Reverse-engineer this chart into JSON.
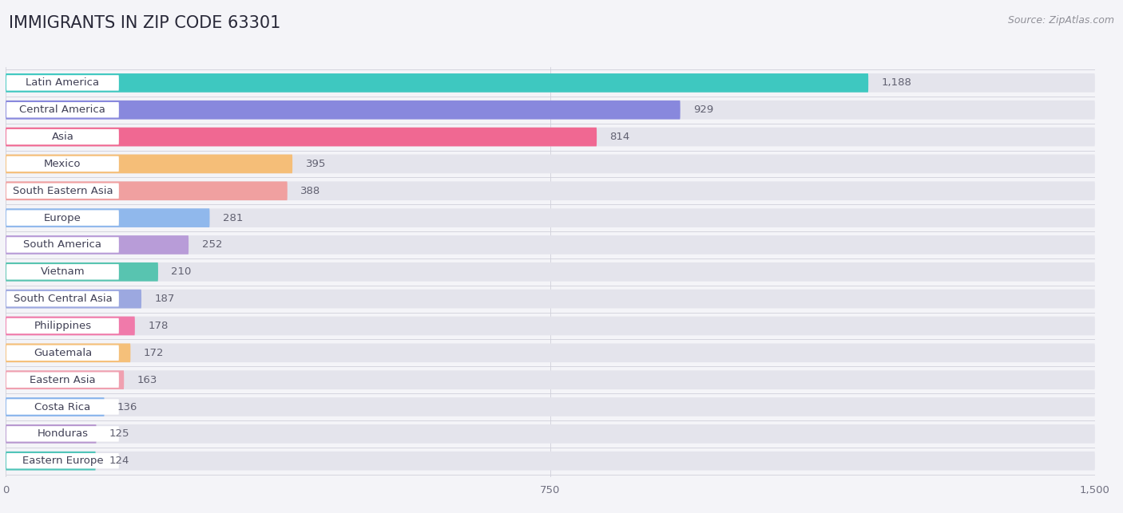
{
  "title": "IMMIGRANTS IN ZIP CODE 63301",
  "source": "Source: ZipAtlas.com",
  "categories": [
    "Latin America",
    "Central America",
    "Asia",
    "Mexico",
    "South Eastern Asia",
    "Europe",
    "South America",
    "Vietnam",
    "South Central Asia",
    "Philippines",
    "Guatemala",
    "Eastern Asia",
    "Costa Rica",
    "Honduras",
    "Eastern Europe"
  ],
  "values": [
    1188,
    929,
    814,
    395,
    388,
    281,
    252,
    210,
    187,
    178,
    172,
    163,
    136,
    125,
    124
  ],
  "colors": [
    "#3ec8c0",
    "#8888dd",
    "#f06892",
    "#f5be78",
    "#f0a0a0",
    "#90b8ec",
    "#b89cd8",
    "#58c4b0",
    "#9ca8e0",
    "#f07aaa",
    "#f5c07a",
    "#f0a0b0",
    "#88b4ec",
    "#b898d0",
    "#4ec4b8"
  ],
  "bar_background": "#e4e4ec",
  "xlim": [
    0,
    1500
  ],
  "xticks": [
    0,
    750,
    1500
  ],
  "background_color": "#f4f4f8",
  "title_fontsize": 15,
  "label_fontsize": 9.5,
  "value_fontsize": 9.5,
  "bar_height": 0.7
}
